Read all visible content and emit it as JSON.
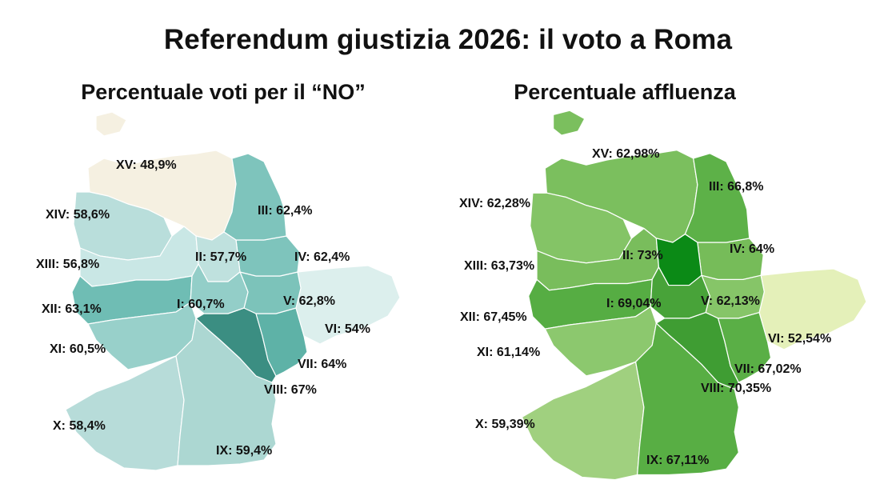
{
  "title": "Referendum giustizia 2026: il voto a Roma",
  "maps": [
    {
      "title": "Percentuale voti per il “NO”",
      "palette": {
        "low": "#f5f0e1",
        "mid": "#c6e7e3",
        "high": "#2e8a7d"
      },
      "districts": [
        {
          "name": "XV",
          "value": "48,9%",
          "color": "#f5f0e1"
        },
        {
          "name": "XIV",
          "value": "58,6%",
          "color": "#b9dedb"
        },
        {
          "name": "XIII",
          "value": "56,8%",
          "color": "#c9e7e5"
        },
        {
          "name": "XII",
          "value": "63,1%",
          "color": "#6fbdb4"
        },
        {
          "name": "XI",
          "value": "60,5%",
          "color": "#98d0ca"
        },
        {
          "name": "X",
          "value": "58,4%",
          "color": "#b7dcd9"
        },
        {
          "name": "IX",
          "value": "59,4%",
          "color": "#acd7d2"
        },
        {
          "name": "VIII",
          "value": "67%",
          "color": "#3b8e82"
        },
        {
          "name": "VII",
          "value": "64%",
          "color": "#5eb2a7"
        },
        {
          "name": "VI",
          "value": "54%",
          "color": "#dcefed"
        },
        {
          "name": "V",
          "value": "62,8%",
          "color": "#7cc3ba"
        },
        {
          "name": "IV",
          "value": "62,4%",
          "color": "#7ec4bc"
        },
        {
          "name": "III",
          "value": "62,4%",
          "color": "#7ec4bc"
        },
        {
          "name": "II",
          "value": "57,7%",
          "color": "#bfe1de"
        },
        {
          "name": "I",
          "value": "60,7%",
          "color": "#93cec8"
        }
      ]
    },
    {
      "title": "Percentuale affluenza",
      "palette": {
        "low": "#e4f0b9",
        "mid": "#8cc36b",
        "high": "#0b8a16"
      },
      "districts": [
        {
          "name": "XV",
          "value": "62,98%",
          "color": "#7bbf5e"
        },
        {
          "name": "XIV",
          "value": "62,28%",
          "color": "#84c466"
        },
        {
          "name": "XIII",
          "value": "63,73%",
          "color": "#79bd5c"
        },
        {
          "name": "XII",
          "value": "67,45%",
          "color": "#56ad43"
        },
        {
          "name": "XI",
          "value": "61,14%",
          "color": "#8cc86e"
        },
        {
          "name": "X",
          "value": "59,39%",
          "color": "#a0d07f"
        },
        {
          "name": "IX",
          "value": "67,11%",
          "color": "#58ae44"
        },
        {
          "name": "VIII",
          "value": "70,35%",
          "color": "#3f9d33"
        },
        {
          "name": "VII",
          "value": "67,02%",
          "color": "#5aaf46"
        },
        {
          "name": "VI",
          "value": "52,54%",
          "color": "#e4f0b9"
        },
        {
          "name": "V",
          "value": "62,13%",
          "color": "#86c568"
        },
        {
          "name": "IV",
          "value": "64%",
          "color": "#76bc59"
        },
        {
          "name": "III",
          "value": "66,8%",
          "color": "#5db148"
        },
        {
          "name": "II",
          "value": "73%",
          "color": "#0b8a16"
        },
        {
          "name": "I",
          "value": "69,04%",
          "color": "#48a339"
        }
      ]
    }
  ]
}
